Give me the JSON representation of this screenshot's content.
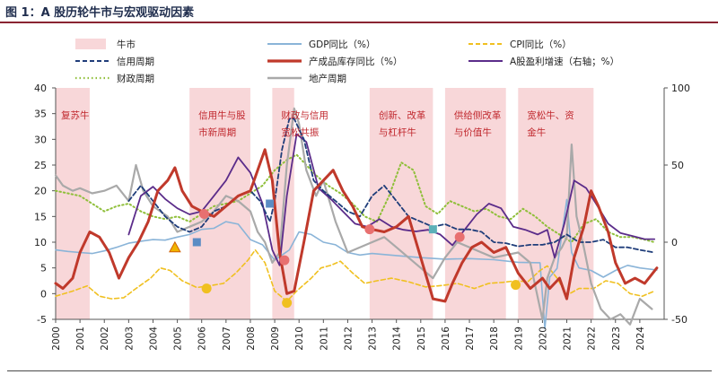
{
  "title": "图 1：A 股历轮牛市与宏观驱动因素",
  "colors": {
    "bull_band": "#f8d7d9",
    "gdp": "#8ab4d8",
    "cpi": "#f0c020",
    "credit": "#1f3d7a",
    "ppi_inventory": "#c0392b",
    "profit": "#5b2c8a",
    "fiscal": "#8fbf3a",
    "property": "#a9a9a9",
    "annotation": "#c0272d"
  },
  "chart_data": {
    "type": "line",
    "title": "A 股历轮牛市与宏观驱动因素",
    "x_range": [
      2000,
      2025
    ],
    "x_ticks": [
      "2000",
      "2001",
      "2002",
      "2003",
      "2004",
      "2005",
      "2006",
      "2007",
      "2008",
      "2009",
      "2010",
      "2011",
      "2012",
      "2013",
      "2014",
      "2015",
      "2016",
      "2017",
      "2018",
      "2019",
      "2020",
      "2021",
      "2022",
      "2023",
      "2024"
    ],
    "y_left": {
      "range": [
        -5,
        40
      ],
      "ticks": [
        "-5",
        "0",
        "5",
        "10",
        "15",
        "20",
        "25",
        "30",
        "35",
        "40"
      ]
    },
    "y_right": {
      "range": [
        -50,
        100
      ],
      "ticks": [
        "-50",
        "0",
        "50",
        "100"
      ]
    },
    "legend_position": "top",
    "legend": {
      "bull": "牛市",
      "gdp": "GDP同比（%）",
      "cpi": "CPI同比（%）",
      "credit": "信用周期",
      "ppi_inventory": "产成品库存同比（%）",
      "profit": "A股盈利增速（右轴；%）",
      "fiscal": "财政周期",
      "property": "地产周期"
    },
    "bull_markets": [
      {
        "start": 2000.0,
        "end": 2001.4,
        "label1": "复苏牛",
        "label2": ""
      },
      {
        "start": 2005.5,
        "end": 2008.0,
        "label1": "信用牛与股",
        "label2": "市新周期"
      },
      {
        "start": 2008.9,
        "end": 2009.8,
        "label1": "财政与信用",
        "label2": "宽松共振"
      },
      {
        "start": 2012.9,
        "end": 2015.5,
        "label1": "创新、改革",
        "label2": "与杠杆牛"
      },
      {
        "start": 2016.0,
        "end": 2018.5,
        "label1": "供给侧改革",
        "label2": "与价值牛"
      },
      {
        "start": 2019.0,
        "end": 2022.1,
        "label1": "宽松牛、资",
        "label2": "金牛"
      }
    ],
    "series": [
      {
        "key": "gdp",
        "name": "GDP同比（%）",
        "axis": "left",
        "style": "solid",
        "x": [
          2000,
          2000.5,
          2001,
          2001.5,
          2002,
          2002.5,
          2003,
          2003.5,
          2004,
          2004.5,
          2005,
          2005.5,
          2006,
          2006.5,
          2007,
          2007.5,
          2008,
          2008.5,
          2009,
          2009.3,
          2009.6,
          2010,
          2010.5,
          2011,
          2011.5,
          2012,
          2012.5,
          2013,
          2014,
          2015,
          2016,
          2017,
          2018,
          2019,
          2019.9,
          2020.1,
          2020.3,
          2020.6,
          2021.0,
          2021.2,
          2021.5,
          2022,
          2022.5,
          2023,
          2023.5,
          2024,
          2024.7
        ],
        "y": [
          8.5,
          8.2,
          8.0,
          7.8,
          8.3,
          9.0,
          9.8,
          10.2,
          10.5,
          10.4,
          11.0,
          11.5,
          12.5,
          12.7,
          14.0,
          13.5,
          10.5,
          9.5,
          6.5,
          7.5,
          8.5,
          12.0,
          11.5,
          10.0,
          9.5,
          8.0,
          7.5,
          7.8,
          7.4,
          7.0,
          6.7,
          6.8,
          6.6,
          6.1,
          6.0,
          -6.8,
          3.2,
          4.9,
          18.3,
          8.0,
          5.0,
          4.5,
          3.2,
          4.5,
          5.5,
          5.0,
          4.6
        ]
      },
      {
        "key": "cpi",
        "name": "CPI同比（%）",
        "axis": "left",
        "style": "dashed",
        "x": [
          2000,
          2000.7,
          2001.3,
          2001.8,
          2002.3,
          2002.8,
          2003.3,
          2003.9,
          2004.3,
          2004.7,
          2005.2,
          2005.8,
          2006.3,
          2006.9,
          2007.4,
          2007.9,
          2008.2,
          2008.6,
          2009.0,
          2009.5,
          2009.9,
          2010.5,
          2010.9,
          2011.3,
          2011.7,
          2012.2,
          2012.7,
          2013.2,
          2013.8,
          2014.5,
          2015.2,
          2015.9,
          2016.5,
          2017.2,
          2017.8,
          2018.4,
          2018.9,
          2019.4,
          2019.9,
          2020.2,
          2020.6,
          2021.0,
          2021.5,
          2022.1,
          2022.6,
          2023.1,
          2023.6,
          2024.1,
          2024.6
        ],
        "y": [
          -0.5,
          0.5,
          1.5,
          -0.5,
          -1.0,
          -0.8,
          1.0,
          3.0,
          5.0,
          4.5,
          2.5,
          1.2,
          1.5,
          2.0,
          4.0,
          6.5,
          8.5,
          6.0,
          0.5,
          -1.5,
          0.5,
          3.0,
          5.0,
          5.5,
          6.3,
          4.0,
          2.0,
          2.5,
          3.0,
          2.3,
          1.3,
          1.6,
          2.0,
          1.0,
          2.0,
          2.2,
          2.5,
          2.3,
          4.5,
          5.4,
          3.0,
          -0.3,
          1.0,
          1.0,
          2.5,
          2.0,
          0.0,
          -0.5,
          0.5
        ]
      },
      {
        "key": "credit",
        "name": "信用周期",
        "axis": "left",
        "style": "dashed",
        "x": [
          2003.0,
          2003.5,
          2004.0,
          2004.5,
          2005.0,
          2005.5,
          2006.0,
          2006.5,
          2007.0,
          2007.5,
          2008.0,
          2008.4,
          2008.8,
          2009.0,
          2009.3,
          2009.6,
          2009.8,
          2010.2,
          2010.6,
          2011.0,
          2011.5,
          2012.0,
          2012.5,
          2013.0,
          2013.5,
          2014.0,
          2014.5,
          2015.0,
          2015.5,
          2016.0,
          2016.5,
          2017.0,
          2017.5,
          2018.0,
          2018.5,
          2019.0,
          2019.5,
          2020.0,
          2020.5,
          2021.0,
          2021.5,
          2022.0,
          2022.5,
          2023.0,
          2023.5,
          2024.0,
          2024.6
        ],
        "y": [
          18.0,
          21.0,
          18.0,
          15.0,
          13.0,
          12.0,
          13.0,
          16.0,
          17.0,
          19.0,
          20.0,
          18.0,
          14.0,
          18.0,
          28.0,
          34.0,
          34.0,
          30.0,
          22.0,
          20.0,
          18.0,
          16.0,
          15.0,
          19.0,
          21.0,
          18.0,
          15.0,
          14.0,
          13.0,
          13.5,
          12.5,
          12.5,
          12.0,
          10.0,
          9.8,
          9.2,
          9.5,
          9.5,
          10.0,
          11.5,
          10.0,
          10.0,
          10.5,
          9.0,
          9.0,
          8.5,
          8.0
        ]
      },
      {
        "key": "ppi_inventory",
        "name": "产成品库存同比（%）",
        "axis": "left",
        "style": "solid",
        "x": [
          2000.0,
          2000.3,
          2000.7,
          2001.0,
          2001.4,
          2001.8,
          2002.2,
          2002.6,
          2003.0,
          2003.4,
          2003.8,
          2004.2,
          2004.6,
          2004.9,
          2005.2,
          2005.6,
          2006.0,
          2006.5,
          2007.0,
          2007.5,
          2008.0,
          2008.3,
          2008.6,
          2008.9,
          2009.2,
          2009.5,
          2009.8,
          2010.2,
          2010.6,
          2011.0,
          2011.4,
          2011.8,
          2012.2,
          2012.6,
          2013.0,
          2013.5,
          2014.0,
          2014.5,
          2015.0,
          2015.5,
          2016.0,
          2016.3,
          2016.7,
          2017.1,
          2017.5,
          2018.0,
          2018.5,
          2019.0,
          2019.5,
          2020.0,
          2020.3,
          2020.7,
          2021.0,
          2021.3,
          2021.7,
          2022.0,
          2022.3,
          2022.7,
          2023.0,
          2023.4,
          2023.8,
          2024.2,
          2024.7
        ],
        "y": [
          2.0,
          1.0,
          3.0,
          8.0,
          12.0,
          11.0,
          8.0,
          3.0,
          7.0,
          10.0,
          14.0,
          20.0,
          22.0,
          24.5,
          20.0,
          17.0,
          16.0,
          15.0,
          17.0,
          19.0,
          20.0,
          24.0,
          28.0,
          22.0,
          8.0,
          0.0,
          0.5,
          10.0,
          20.0,
          22.0,
          24.0,
          20.0,
          17.0,
          13.0,
          12.5,
          12.0,
          13.0,
          15.0,
          7.0,
          -1.0,
          -1.5,
          2.0,
          6.0,
          9.0,
          10.0,
          8.0,
          9.0,
          4.0,
          1.0,
          3.0,
          1.0,
          3.0,
          -1.0,
          7.0,
          13.0,
          20.0,
          17.0,
          12.0,
          6.0,
          2.0,
          3.0,
          2.0,
          5.0
        ]
      },
      {
        "key": "profit",
        "name": "A股盈利增速（右轴；%）",
        "axis": "right",
        "style": "solid",
        "x": [
          2003.0,
          2003.5,
          2004.0,
          2004.5,
          2005.0,
          2005.5,
          2006.0,
          2006.5,
          2007.0,
          2007.5,
          2008.0,
          2008.5,
          2008.9,
          2009.2,
          2009.5,
          2009.9,
          2010.3,
          2010.8,
          2011.3,
          2011.8,
          2012.3,
          2012.8,
          2013.3,
          2013.8,
          2014.3,
          2014.8,
          2015.3,
          2015.8,
          2016.3,
          2016.8,
          2017.3,
          2017.8,
          2018.3,
          2018.8,
          2019.3,
          2019.8,
          2020.2,
          2020.5,
          2020.9,
          2021.3,
          2021.8,
          2022.2,
          2022.7,
          2023.2,
          2023.7,
          2024.2,
          2024.6
        ],
        "y": [
          5,
          30,
          36,
          28,
          22,
          18,
          20,
          30,
          40,
          55,
          45,
          25,
          -5,
          -15,
          30,
          70,
          65,
          35,
          28,
          20,
          12,
          10,
          15,
          10,
          8,
          7,
          8,
          5,
          -2,
          8,
          18,
          25,
          22,
          10,
          8,
          5,
          8,
          -10,
          12,
          40,
          35,
          25,
          12,
          6,
          4,
          2,
          2
        ]
      },
      {
        "key": "fiscal",
        "name": "财政周期",
        "axis": "left",
        "style": "dotted",
        "x": [
          2000.0,
          2000.5,
          2001.0,
          2001.5,
          2002.0,
          2002.5,
          2003.0,
          2003.5,
          2004.0,
          2004.5,
          2005.0,
          2005.5,
          2006.0,
          2006.5,
          2007.0,
          2007.5,
          2008.0,
          2008.5,
          2009.0,
          2009.5,
          2009.9,
          2010.3,
          2010.7,
          2011.2,
          2011.7,
          2012.2,
          2012.7,
          2013.2,
          2013.7,
          2014.2,
          2014.7,
          2015.2,
          2015.7,
          2016.2,
          2016.7,
          2017.2,
          2017.7,
          2018.2,
          2018.7,
          2019.2,
          2019.7,
          2020.2,
          2020.7,
          2021.2,
          2021.7,
          2022.2,
          2022.7,
          2023.2,
          2023.7,
          2024.2,
          2024.6
        ],
        "y": [
          20.0,
          19.5,
          19.0,
          17.5,
          16.0,
          17.0,
          17.5,
          16.0,
          15.0,
          14.5,
          15.0,
          14.0,
          15.5,
          17.0,
          17.5,
          18.0,
          19.5,
          21.0,
          24.0,
          26.0,
          27.0,
          25.0,
          23.0,
          21.0,
          19.5,
          17.5,
          15.0,
          14.0,
          19.0,
          25.5,
          24.0,
          17.0,
          15.5,
          18.0,
          17.0,
          16.0,
          16.5,
          15.0,
          14.5,
          16.5,
          15.0,
          13.0,
          11.5,
          10.0,
          13.5,
          14.5,
          12.0,
          11.0,
          11.0,
          10.5,
          10.0
        ]
      },
      {
        "key": "property",
        "name": "地产周期",
        "axis": "left",
        "style": "solid",
        "x": [
          2000.0,
          2000.3,
          2000.7,
          2001.0,
          2001.5,
          2002.0,
          2002.5,
          2003.0,
          2003.3,
          2003.6,
          2004.0,
          2004.3,
          2004.6,
          2005.0,
          2005.5,
          2006.0,
          2006.5,
          2007.0,
          2007.5,
          2008.0,
          2008.3,
          2008.6,
          2008.9,
          2009.2,
          2009.5,
          2009.8,
          2010.0,
          2010.3,
          2010.7,
          2011.0,
          2011.5,
          2012.0,
          2012.5,
          2013.0,
          2013.5,
          2014.0,
          2014.5,
          2015.0,
          2015.5,
          2016.0,
          2016.5,
          2017.0,
          2017.5,
          2018.0,
          2018.5,
          2019.0,
          2019.5,
          2020.0,
          2020.2,
          2020.5,
          2020.8,
          2021.0,
          2021.2,
          2021.4,
          2021.7,
          2022.0,
          2022.4,
          2022.8,
          2023.2,
          2023.6,
          2024.0,
          2024.5
        ],
        "y": [
          23.0,
          21.0,
          20.0,
          20.5,
          19.5,
          20.0,
          21.0,
          18.0,
          25.0,
          20.0,
          17.0,
          16.0,
          15.0,
          12.0,
          13.0,
          14.0,
          16.0,
          19.0,
          18.0,
          16.0,
          12.0,
          10.0,
          6.0,
          8.0,
          25.0,
          36.0,
          33.0,
          24.0,
          19.0,
          22.0,
          14.0,
          8.0,
          9.0,
          10.0,
          11.0,
          9.0,
          7.0,
          5.0,
          3.0,
          7.0,
          10.0,
          9.0,
          8.0,
          7.0,
          7.5,
          8.0,
          6.0,
          -5.0,
          3.0,
          7.0,
          9.0,
          11.0,
          29.0,
          15.0,
          9.0,
          2.0,
          -3.0,
          -5.0,
          -4.0,
          -6.0,
          -1.0,
          -3.0
        ]
      }
    ],
    "markers": [
      {
        "shape": "triangle",
        "color": "#f0b400",
        "x": 2004.9,
        "y": 9.0
      },
      {
        "shape": "square",
        "color": "#5b8cc4",
        "x": 2005.8,
        "y": 10.0
      },
      {
        "shape": "circle",
        "color": "#e87070",
        "x": 2006.1,
        "y": 15.5
      },
      {
        "shape": "circle",
        "color": "#f0c020",
        "x": 2006.2,
        "y": 1.0
      },
      {
        "shape": "square",
        "color": "#5b8cc4",
        "x": 2008.8,
        "y": 17.5
      },
      {
        "shape": "circle",
        "color": "#e87070",
        "x": 2009.4,
        "y": 6.5
      },
      {
        "shape": "circle",
        "color": "#f0c020",
        "x": 2009.5,
        "y": -1.8
      },
      {
        "shape": "circle",
        "color": "#e87070",
        "x": 2012.9,
        "y": 12.5
      },
      {
        "shape": "square",
        "color": "#5bb0b8",
        "x": 2015.5,
        "y": 12.5
      },
      {
        "shape": "circle",
        "color": "#e87070",
        "x": 2016.6,
        "y": 11.0
      },
      {
        "shape": "circle",
        "color": "#f0c020",
        "x": 2018.9,
        "y": 1.7
      }
    ]
  }
}
